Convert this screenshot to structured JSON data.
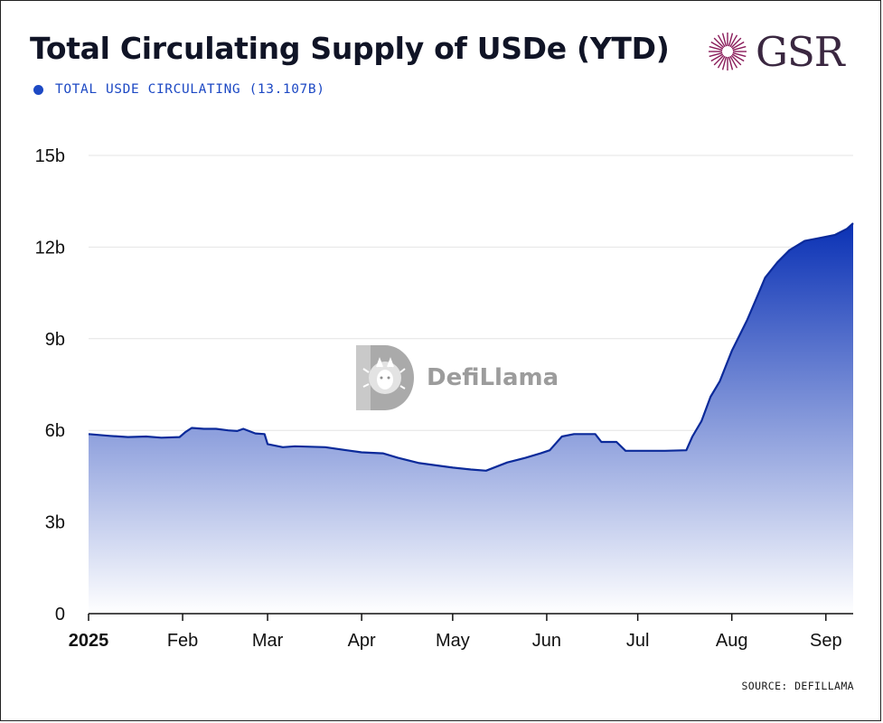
{
  "header": {
    "title": "Total Circulating Supply of USDe (YTD)",
    "logo_text": "GSR"
  },
  "legend": {
    "label": "TOTAL USDE CIRCULATING (13.107B)",
    "color": "#1d49c4"
  },
  "watermark": {
    "text": "DefiLlama"
  },
  "footer": {
    "source": "SOURCE: DEFILLAMA"
  },
  "colors": {
    "line": "#0b2a9a",
    "fill_top": "#0a31b5",
    "fill_bottom": "#ffffff",
    "grid": "#e4e4e4",
    "logo_accent": "#8a1c5a"
  },
  "chart_data": {
    "type": "area",
    "x_tick_labels": [
      "2025",
      "Feb",
      "Mar",
      "Apr",
      "May",
      "Jun",
      "Jul",
      "Aug",
      "Sep"
    ],
    "y_tick_labels": [
      "0",
      "3b",
      "6b",
      "9b",
      "12b",
      "15b"
    ],
    "y_ticks": [
      0,
      3,
      6,
      9,
      12,
      15
    ],
    "ylim": [
      0,
      15
    ],
    "y_unit": "billion USD",
    "grid": true,
    "series": [
      {
        "name": "TOTAL USDE CIRCULATING (13.107B)",
        "x": [
          "2025-01-01",
          "2025-01-08",
          "2025-01-14",
          "2025-01-20",
          "2025-01-25",
          "2025-01-31",
          "2025-02-02",
          "2025-02-04",
          "2025-02-08",
          "2025-02-12",
          "2025-02-16",
          "2025-02-19",
          "2025-02-21",
          "2025-02-25",
          "2025-02-28",
          "2025-03-01",
          "2025-03-06",
          "2025-03-10",
          "2025-03-20",
          "2025-03-27",
          "2025-04-01",
          "2025-04-08",
          "2025-04-13",
          "2025-04-20",
          "2025-04-26",
          "2025-05-01",
          "2025-05-07",
          "2025-05-12",
          "2025-05-19",
          "2025-05-25",
          "2025-05-30",
          "2025-06-02",
          "2025-06-06",
          "2025-06-10",
          "2025-06-17",
          "2025-06-19",
          "2025-06-24",
          "2025-06-27",
          "2025-07-05",
          "2025-07-10",
          "2025-07-17",
          "2025-07-19",
          "2025-07-22",
          "2025-07-25",
          "2025-07-28",
          "2025-08-01",
          "2025-08-06",
          "2025-08-09",
          "2025-08-12",
          "2025-08-16",
          "2025-08-20",
          "2025-08-25",
          "2025-08-30",
          "2025-09-04",
          "2025-09-06",
          "2025-09-08",
          "2025-09-10"
        ],
        "values": [
          5.88,
          5.82,
          5.78,
          5.8,
          5.76,
          5.78,
          5.95,
          6.08,
          6.05,
          6.05,
          6.0,
          5.98,
          6.05,
          5.9,
          5.88,
          5.55,
          5.45,
          5.48,
          5.45,
          5.35,
          5.28,
          5.25,
          5.1,
          4.93,
          4.85,
          4.78,
          4.72,
          4.68,
          4.95,
          5.1,
          5.25,
          5.35,
          5.8,
          5.88,
          5.88,
          5.62,
          5.62,
          5.33,
          5.33,
          5.33,
          5.35,
          5.8,
          6.3,
          7.1,
          7.6,
          8.6,
          9.6,
          10.3,
          11.0,
          11.5,
          11.9,
          12.2,
          12.3,
          12.4,
          12.5,
          12.6,
          12.78
        ]
      }
    ]
  }
}
